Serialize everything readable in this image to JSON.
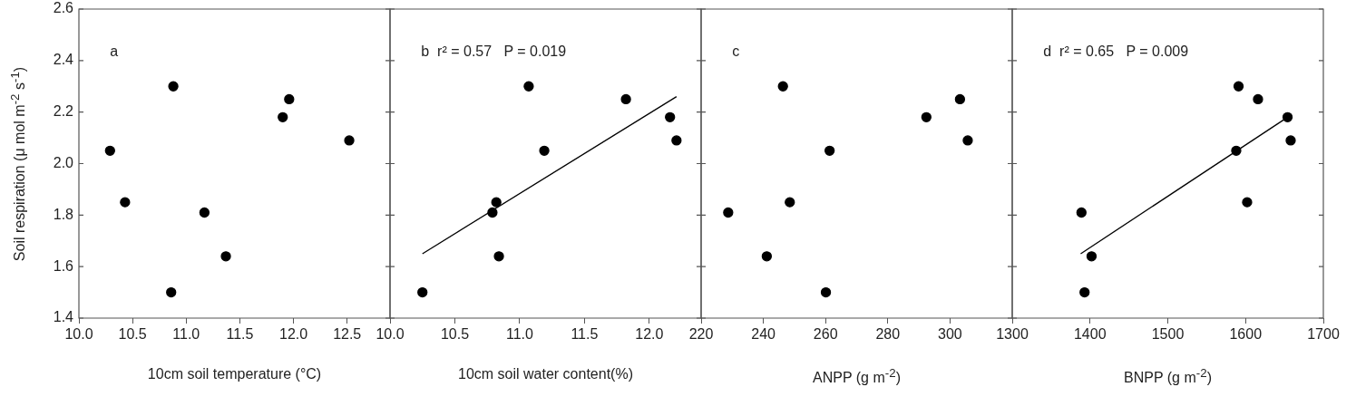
{
  "chart_data": [
    {
      "type": "scatter",
      "xlabel": "10cm soil temperature (°C)",
      "ylabel": "Soil respiration (μ mol m$^{-2}$ s$^{-1}$)",
      "marker": "circle",
      "annotations": [
        "a"
      ],
      "xlim": [
        10,
        12.9
      ],
      "xticks": [
        {
          "value": 10,
          "label": "10.0"
        },
        10.5,
        {
          "value": 11,
          "label": "11.0"
        },
        11.5,
        {
          "value": 12,
          "label": "12.0"
        },
        12.5
      ],
      "ylim": [
        1.4,
        2.6
      ],
      "yticks": [
        1.4,
        1.6,
        1.8,
        {
          "value": 2,
          "label": "2.0"
        },
        2.2,
        2.4,
        2.6
      ],
      "series": [
        {
          "type": "scatter",
          "color": "#000000",
          "x": [
            10.29,
            10.43,
            10.88,
            10.86,
            11.17,
            11.37,
            11.9,
            11.96,
            12.52
          ],
          "values": [
            2.05,
            1.85,
            2.3,
            1.5,
            1.81,
            1.64,
            2.18,
            2.25,
            2.09
          ]
        }
      ]
    },
    {
      "type": "scatter",
      "xlabel": "10cm soil water content(%)",
      "marker": "circle",
      "tick_labels": "x",
      "annotations": [
        "b  r² = 0.57   P = 0.019"
      ],
      "xlim": [
        10,
        12.4
      ],
      "xticks": [
        {
          "value": 10,
          "label": "10.0"
        },
        10.5,
        {
          "value": 11,
          "label": "11.0"
        },
        11.5,
        {
          "value": 12,
          "label": "12.0"
        }
      ],
      "ylim": [
        1.4,
        2.6
      ],
      "yticks": [
        1.4,
        1.6,
        1.8,
        2,
        2.2,
        2.4,
        2.6
      ],
      "series": [
        {
          "type": "scatter",
          "color": "#000000",
          "x": [
            10.25,
            10.79,
            10.82,
            10.84,
            11.07,
            11.19,
            11.82,
            12.16,
            12.21
          ],
          "values": [
            1.5,
            1.81,
            1.85,
            1.64,
            2.3,
            2.05,
            2.25,
            2.18,
            2.09
          ]
        },
        {
          "type": "line",
          "color": "#000000",
          "marker": "none",
          "x": [
            10.25,
            12.21
          ],
          "values": [
            1.65,
            2.26
          ]
        }
      ]
    },
    {
      "type": "scatter",
      "xlabel": "ANPP (g m$^{-2}$)",
      "marker": "circle",
      "tick_labels": "x",
      "annotations": [
        "c"
      ],
      "xlim": [
        220,
        320
      ],
      "xticks": [
        220,
        240,
        260,
        280,
        300
      ],
      "ylim": [
        1.4,
        2.6
      ],
      "yticks": [
        1.4,
        1.6,
        1.8,
        2,
        2.2,
        2.4,
        2.6
      ],
      "series": [
        {
          "type": "scatter",
          "color": "#000000",
          "x": [
            228.7,
            241.1,
            246.3,
            248.5,
            260.1,
            261.3,
            292.4,
            303.2,
            305.7
          ],
          "values": [
            1.81,
            1.64,
            2.3,
            1.85,
            1.5,
            2.05,
            2.18,
            2.25,
            2.09
          ]
        }
      ]
    },
    {
      "type": "scatter",
      "xlabel": "BNPP (g m$^{-2}$)",
      "marker": "circle",
      "tick_labels": "x",
      "annotations": [
        "d  r² = 0.65   P = 0.009"
      ],
      "xlim": [
        1300,
        1700
      ],
      "xticks": [
        1300,
        1400,
        1500,
        1600,
        1700
      ],
      "ylim": [
        1.4,
        2.6
      ],
      "yticks": [
        1.4,
        1.6,
        1.8,
        2,
        2.2,
        2.4,
        2.6
      ],
      "series": [
        {
          "type": "scatter",
          "color": "#000000",
          "x": [
            1389,
            1393,
            1402,
            1588,
            1591,
            1602,
            1616,
            1654,
            1658
          ],
          "values": [
            1.81,
            1.5,
            1.64,
            2.05,
            2.3,
            1.85,
            2.25,
            2.18,
            2.09
          ]
        },
        {
          "type": "line",
          "color": "#000000",
          "marker": "none",
          "x": [
            1388,
            1654
          ],
          "values": [
            1.65,
            2.18
          ]
        }
      ]
    }
  ]
}
